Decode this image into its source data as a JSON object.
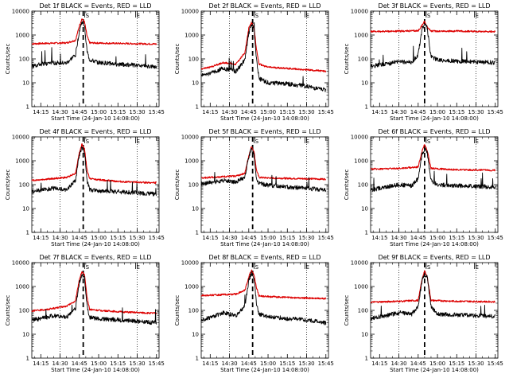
{
  "figure": {
    "colors": {
      "events": "#000000",
      "lld": "#dd0000",
      "axes": "#000000"
    }
  },
  "chart_data": [
    {
      "type": "line",
      "title": "Det 1f BLACK = Events, RED = LLD",
      "xlabel": "Start Time (24-Jan-10 14:08:00)",
      "ylabel": "Counts/sec",
      "y_scale": "log",
      "ylim": [
        1,
        10000
      ],
      "x_ticks": [
        "14:15",
        "14:30",
        "14:45",
        "15:00",
        "15:15",
        "15:30",
        "15:45"
      ],
      "y_ticks": [
        "1",
        "10",
        "100",
        "1000",
        "10000"
      ],
      "vertical_markers": {
        "dotted_at": [
          "14:30",
          "15:30"
        ],
        "dashed_at": "14:48",
        "top_marks": [
          "S",
          "E"
        ]
      },
      "series": [
        {
          "name": "BLACK = Events",
          "color": "#000000",
          "x": [
            "14:08",
            "14:15",
            "14:25",
            "14:35",
            "14:42",
            "14:45",
            "14:47",
            "14:49",
            "14:51",
            "14:53",
            "15:00",
            "15:15",
            "15:30",
            "15:45"
          ],
          "y": [
            50,
            60,
            70,
            65,
            150,
            1500,
            3500,
            2500,
            200,
            90,
            70,
            60,
            55,
            45
          ]
        },
        {
          "name": "RED = LLD",
          "color": "#dd0000",
          "x": [
            "14:08",
            "14:20",
            "14:35",
            "14:42",
            "14:45",
            "14:47",
            "14:49",
            "14:51",
            "14:53",
            "15:00",
            "15:20",
            "15:45"
          ],
          "y": [
            430,
            450,
            470,
            600,
            2400,
            4800,
            3500,
            900,
            470,
            460,
            440,
            420
          ]
        }
      ]
    },
    {
      "type": "line",
      "title": "Det 2f BLACK = Events, RED = LLD",
      "xlabel": "Start Time (24-Jan-10 14:08:00)",
      "ylabel": "Counts/sec",
      "y_scale": "log",
      "ylim": [
        1,
        10000
      ],
      "x_ticks": [
        "14:15",
        "14:30",
        "14:45",
        "15:00",
        "15:15",
        "15:30",
        "15:45"
      ],
      "y_ticks": [
        "1",
        "10",
        "100",
        "1000",
        "10000"
      ],
      "vertical_markers": {
        "dotted_at": [
          "14:30",
          "15:30"
        ],
        "dashed_at": "14:48",
        "top_marks": [
          "S",
          "E"
        ]
      },
      "series": [
        {
          "name": "BLACK = Events",
          "color": "#000000",
          "x": [
            "14:08",
            "14:15",
            "14:25",
            "14:35",
            "14:42",
            "14:45",
            "14:47",
            "14:49",
            "14:51",
            "14:53",
            "15:00",
            "15:15",
            "15:30",
            "15:45"
          ],
          "y": [
            20,
            25,
            40,
            30,
            90,
            1200,
            2800,
            1800,
            100,
            15,
            10,
            9,
            7,
            5
          ]
        },
        {
          "name": "RED = LLD",
          "color": "#dd0000",
          "x": [
            "14:08",
            "14:15",
            "14:25",
            "14:35",
            "14:42",
            "14:45",
            "14:47",
            "14:49",
            "14:51",
            "14:53",
            "15:00",
            "15:15",
            "15:30",
            "15:45"
          ],
          "y": [
            38,
            45,
            70,
            60,
            180,
            1900,
            3200,
            2300,
            250,
            60,
            45,
            40,
            35,
            30
          ]
        }
      ]
    },
    {
      "type": "line",
      "title": "Det 3f BLACK = Events, RED = LLD",
      "xlabel": "Start Time (24-Jan-10 14:08:00)",
      "ylabel": "Counts/sec",
      "y_scale": "log",
      "ylim": [
        1,
        10000
      ],
      "x_ticks": [
        "14:15",
        "14:30",
        "14:45",
        "15:00",
        "15:15",
        "15:30",
        "15:45"
      ],
      "y_ticks": [
        "1",
        "10",
        "100",
        "1000",
        "10000"
      ],
      "vertical_markers": {
        "dotted_at": [
          "14:30",
          "15:30"
        ],
        "dashed_at": "14:50",
        "top_marks": [
          "S",
          "E"
        ]
      },
      "series": [
        {
          "name": "BLACK = Events",
          "color": "#000000",
          "x": [
            "14:08",
            "14:20",
            "14:30",
            "14:40",
            "14:45",
            "14:48",
            "14:50",
            "14:52",
            "14:55",
            "15:00",
            "15:15",
            "15:30",
            "15:45"
          ],
          "y": [
            50,
            60,
            80,
            70,
            150,
            1800,
            3200,
            2000,
            120,
            90,
            80,
            75,
            70
          ]
        },
        {
          "name": "RED = LLD",
          "color": "#dd0000",
          "x": [
            "14:08",
            "14:30",
            "14:45",
            "14:48",
            "14:50",
            "14:52",
            "14:55",
            "15:15",
            "15:45"
          ],
          "y": [
            1400,
            1450,
            1500,
            2500,
            3800,
            2200,
            1450,
            1450,
            1400
          ]
        }
      ]
    },
    {
      "type": "line",
      "title": "Det 4f BLACK = Events, RED = LLD",
      "xlabel": "Start Time (24-Jan-10 14:08:00)",
      "ylabel": "Counts/sec",
      "y_scale": "log",
      "ylim": [
        1,
        10000
      ],
      "x_ticks": [
        "14:15",
        "14:30",
        "14:45",
        "15:00",
        "15:15",
        "15:30",
        "15:45"
      ],
      "y_ticks": [
        "1",
        "10",
        "100",
        "1000",
        "10000"
      ],
      "vertical_markers": {
        "dotted_at": [
          "14:30",
          "15:30"
        ],
        "dashed_at": "14:48",
        "top_marks": [
          "S",
          "E"
        ]
      },
      "series": [
        {
          "name": "BLACK = Events",
          "color": "#000000",
          "x": [
            "14:08",
            "14:15",
            "14:25",
            "14:35",
            "14:42",
            "14:45",
            "14:47",
            "14:49",
            "14:51",
            "14:53",
            "15:00",
            "15:15",
            "15:30",
            "15:45"
          ],
          "y": [
            50,
            60,
            70,
            60,
            150,
            1800,
            3500,
            2500,
            150,
            60,
            55,
            50,
            45,
            40
          ]
        },
        {
          "name": "RED = LLD",
          "color": "#dd0000",
          "x": [
            "14:08",
            "14:20",
            "14:35",
            "14:42",
            "14:45",
            "14:47",
            "14:49",
            "14:51",
            "14:53",
            "15:00",
            "15:20",
            "15:45"
          ],
          "y": [
            150,
            170,
            200,
            300,
            2200,
            4800,
            3200,
            400,
            180,
            160,
            130,
            120
          ]
        }
      ]
    },
    {
      "type": "line",
      "title": "Det 5f BLACK = Events, RED = LLD",
      "xlabel": "Start Time (24-Jan-10 14:08:00)",
      "ylabel": "Counts/sec",
      "y_scale": "log",
      "ylim": [
        1,
        10000
      ],
      "x_ticks": [
        "14:15",
        "14:30",
        "14:45",
        "15:00",
        "15:15",
        "15:30",
        "15:45"
      ],
      "y_ticks": [
        "1",
        "10",
        "100",
        "1000",
        "10000"
      ],
      "vertical_markers": {
        "dotted_at": [
          "14:30",
          "15:30"
        ],
        "dashed_at": "14:48",
        "top_marks": [
          "S",
          "E"
        ]
      },
      "series": [
        {
          "name": "BLACK = Events",
          "color": "#000000",
          "x": [
            "14:08",
            "14:15",
            "14:25",
            "14:35",
            "14:42",
            "14:45",
            "14:47",
            "14:49",
            "14:51",
            "14:53",
            "15:00",
            "15:15",
            "15:30",
            "15:45"
          ],
          "y": [
            110,
            120,
            150,
            130,
            200,
            1500,
            3000,
            2000,
            180,
            110,
            95,
            80,
            70,
            60
          ]
        },
        {
          "name": "RED = LLD",
          "color": "#dd0000",
          "x": [
            "14:08",
            "14:20",
            "14:35",
            "14:42",
            "14:45",
            "14:47",
            "14:49",
            "14:51",
            "14:53",
            "15:00",
            "15:20",
            "15:45"
          ],
          "y": [
            190,
            210,
            230,
            300,
            1600,
            3800,
            2600,
            400,
            200,
            190,
            180,
            170
          ]
        }
      ]
    },
    {
      "type": "line",
      "title": "Det 6f BLACK = Events, RED = LLD",
      "xlabel": "Start Time (24-Jan-10 14:08:00)",
      "ylabel": "Counts/sec",
      "y_scale": "log",
      "ylim": [
        1,
        10000
      ],
      "x_ticks": [
        "14:15",
        "14:30",
        "14:45",
        "15:00",
        "15:15",
        "15:30",
        "15:45"
      ],
      "y_ticks": [
        "1",
        "10",
        "100",
        "1000",
        "10000"
      ],
      "vertical_markers": {
        "dotted_at": [
          "14:30",
          "15:30"
        ],
        "dashed_at": "14:50",
        "top_marks": [
          "S",
          "E"
        ]
      },
      "series": [
        {
          "name": "BLACK = Events",
          "color": "#000000",
          "x": [
            "14:08",
            "14:20",
            "14:30",
            "14:40",
            "14:45",
            "14:48",
            "14:50",
            "14:52",
            "14:55",
            "15:00",
            "15:15",
            "15:30",
            "15:45"
          ],
          "y": [
            60,
            80,
            100,
            90,
            180,
            1800,
            3200,
            2200,
            150,
            100,
            90,
            85,
            80
          ]
        },
        {
          "name": "RED = LLD",
          "color": "#dd0000",
          "x": [
            "14:08",
            "14:30",
            "14:45",
            "14:48",
            "14:50",
            "14:52",
            "14:55",
            "15:15",
            "15:45"
          ],
          "y": [
            450,
            480,
            550,
            2500,
            4800,
            2800,
            480,
            420,
            400
          ]
        }
      ]
    },
    {
      "type": "line",
      "title": "Det 7f BLACK = Events, RED = LLD",
      "xlabel": "Start Time (24-Jan-10 14:08:00)",
      "ylabel": "Counts/sec",
      "y_scale": "log",
      "ylim": [
        1,
        10000
      ],
      "x_ticks": [
        "14:15",
        "14:30",
        "14:45",
        "15:00",
        "15:15",
        "15:30",
        "15:45"
      ],
      "y_ticks": [
        "1",
        "10",
        "100",
        "1000",
        "10000"
      ],
      "vertical_markers": {
        "dotted_at": [
          "14:30",
          "15:30"
        ],
        "dashed_at": "14:48",
        "top_marks": [
          "S",
          "E"
        ]
      },
      "series": [
        {
          "name": "BLACK = Events",
          "color": "#000000",
          "x": [
            "14:08",
            "14:15",
            "14:25",
            "14:35",
            "14:42",
            "14:45",
            "14:47",
            "14:49",
            "14:51",
            "14:53",
            "15:00",
            "15:15",
            "15:30",
            "15:45"
          ],
          "y": [
            40,
            45,
            60,
            50,
            120,
            1500,
            3200,
            2300,
            150,
            50,
            45,
            40,
            35,
            30
          ]
        },
        {
          "name": "RED = LLD",
          "color": "#dd0000",
          "x": [
            "14:08",
            "14:20",
            "14:35",
            "14:42",
            "14:45",
            "14:47",
            "14:49",
            "14:51",
            "14:53",
            "15:00",
            "15:20",
            "15:45"
          ],
          "y": [
            95,
            110,
            150,
            250,
            2000,
            4200,
            3000,
            350,
            110,
            100,
            85,
            75
          ]
        }
      ]
    },
    {
      "type": "line",
      "title": "Det 8f BLACK = Events, RED = LLD",
      "xlabel": "Start Time (24-Jan-10 14:08:00)",
      "ylabel": "Counts/sec",
      "y_scale": "log",
      "ylim": [
        1,
        10000
      ],
      "x_ticks": [
        "14:15",
        "14:30",
        "14:45",
        "15:00",
        "15:15",
        "15:30",
        "15:45"
      ],
      "y_ticks": [
        "1",
        "10",
        "100",
        "1000",
        "10000"
      ],
      "vertical_markers": {
        "dotted_at": [
          "14:30",
          "15:30"
        ],
        "dashed_at": "14:48",
        "top_marks": [
          "S",
          "E"
        ]
      },
      "series": [
        {
          "name": "BLACK = Events",
          "color": "#000000",
          "x": [
            "14:08",
            "14:15",
            "14:25",
            "14:35",
            "14:42",
            "14:45",
            "14:47",
            "14:49",
            "14:51",
            "14:53",
            "15:00",
            "15:15",
            "15:30",
            "15:45"
          ],
          "y": [
            40,
            50,
            80,
            60,
            150,
            1800,
            3500,
            2500,
            200,
            70,
            55,
            45,
            40,
            30
          ]
        },
        {
          "name": "RED = LLD",
          "color": "#dd0000",
          "x": [
            "14:08",
            "14:20",
            "14:35",
            "14:42",
            "14:45",
            "14:47",
            "14:49",
            "14:51",
            "14:53",
            "15:00",
            "15:20",
            "15:45"
          ],
          "y": [
            420,
            440,
            480,
            700,
            2500,
            4800,
            3200,
            900,
            400,
            380,
            340,
            310
          ]
        }
      ]
    },
    {
      "type": "line",
      "title": "Det 9f BLACK = Events, RED = LLD",
      "xlabel": "Start Time (24-Jan-10 14:08:00)",
      "ylabel": "Counts/sec",
      "y_scale": "log",
      "ylim": [
        1,
        10000
      ],
      "x_ticks": [
        "14:15",
        "14:30",
        "14:45",
        "15:00",
        "15:15",
        "15:30",
        "15:45"
      ],
      "y_ticks": [
        "1",
        "10",
        "100",
        "1000",
        "10000"
      ],
      "vertical_markers": {
        "dotted_at": [
          "14:30",
          "15:30"
        ],
        "dashed_at": "14:50",
        "top_marks": [
          "S",
          "E"
        ]
      },
      "series": [
        {
          "name": "BLACK = Events",
          "color": "#000000",
          "x": [
            "14:08",
            "14:20",
            "14:30",
            "14:40",
            "14:45",
            "14:48",
            "14:50",
            "14:52",
            "14:55",
            "15:00",
            "15:15",
            "15:30",
            "15:45"
          ],
          "y": [
            45,
            60,
            80,
            70,
            150,
            1800,
            3300,
            2400,
            150,
            70,
            65,
            60,
            55
          ]
        },
        {
          "name": "RED = LLD",
          "color": "#dd0000",
          "x": [
            "14:08",
            "14:30",
            "14:45",
            "14:48",
            "14:50",
            "14:52",
            "14:55",
            "15:15",
            "15:45"
          ],
          "y": [
            220,
            240,
            260,
            2000,
            4500,
            2600,
            260,
            240,
            230
          ]
        }
      ]
    }
  ]
}
